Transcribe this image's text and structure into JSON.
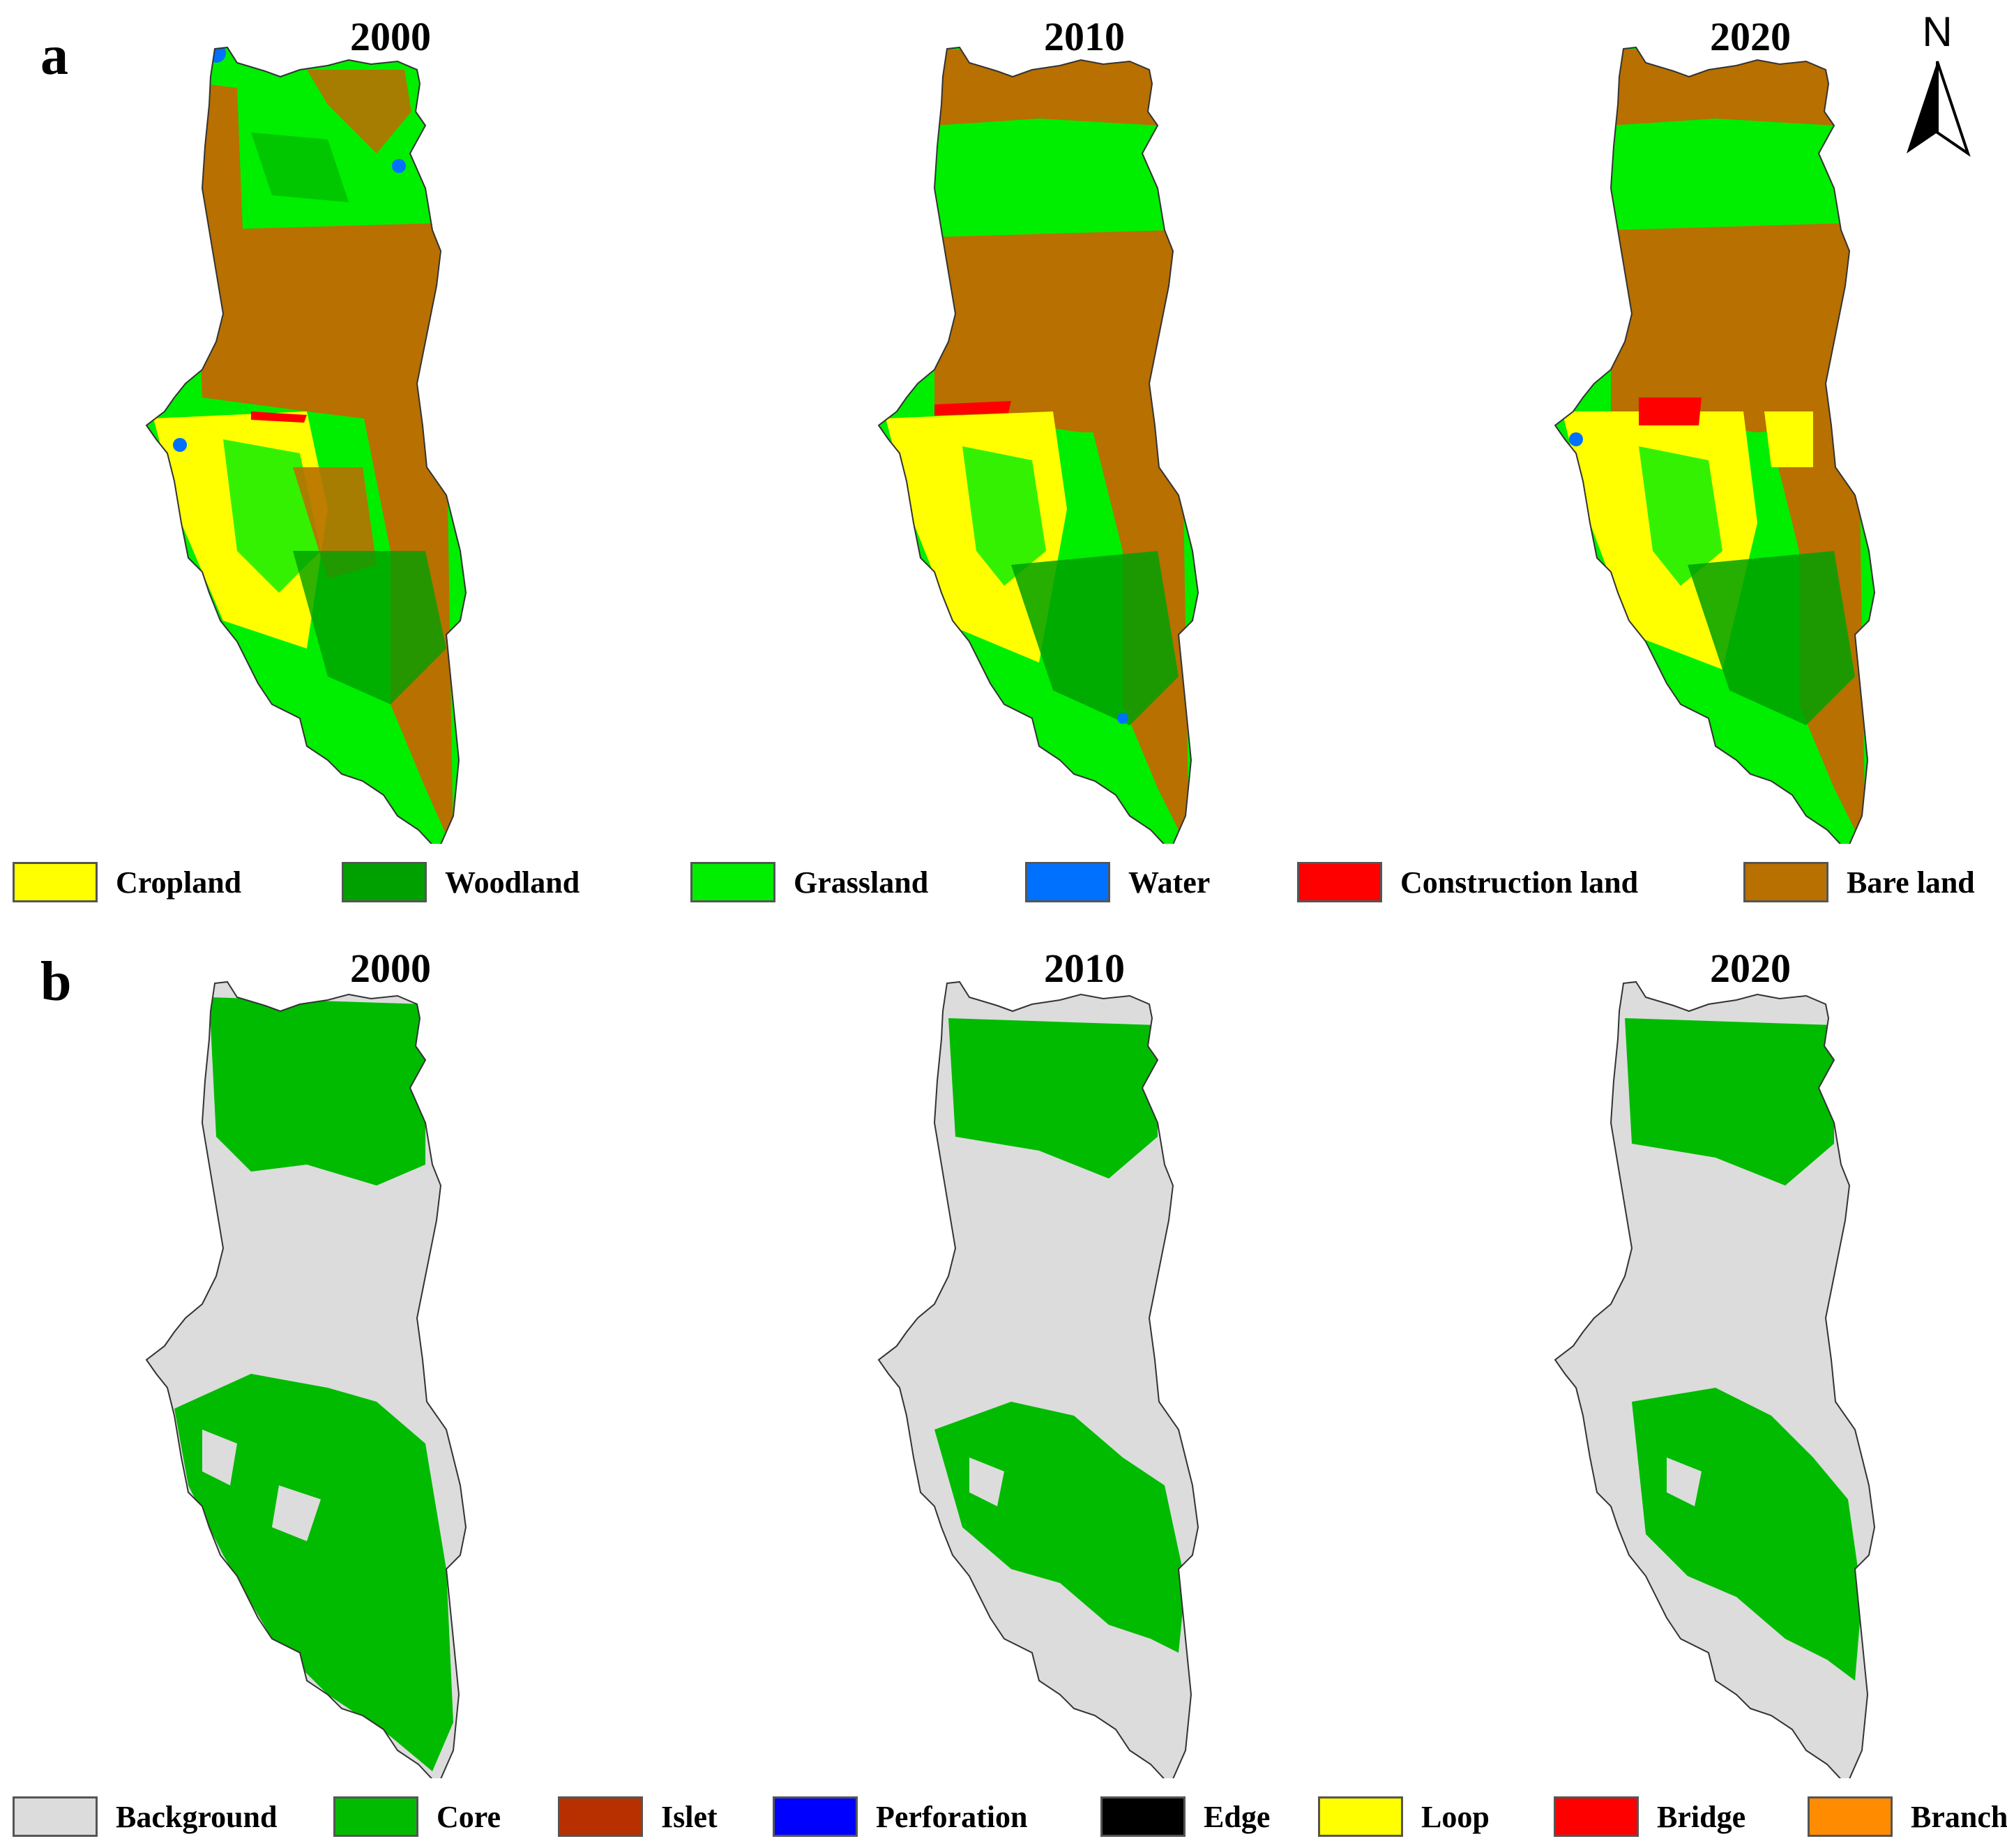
{
  "panel_a": {
    "letter": "a",
    "years": [
      "2000",
      "2010",
      "2020"
    ],
    "legend": [
      {
        "label": "Cropland",
        "color": "#ffff00"
      },
      {
        "label": "Woodland",
        "color": "#00a000"
      },
      {
        "label": "Grassland",
        "color": "#00ee00"
      },
      {
        "label": "Water",
        "color": "#0070ff"
      },
      {
        "label": "Construction land",
        "color": "#ff0000"
      },
      {
        "label": "Bare land",
        "color": "#b87000"
      }
    ]
  },
  "panel_b": {
    "letter": "b",
    "years": [
      "2000",
      "2010",
      "2020"
    ],
    "legend": [
      {
        "label": "Background",
        "color": "#dcdcdc"
      },
      {
        "label": "Core",
        "color": "#00bb00"
      },
      {
        "label": "Islet",
        "color": "#b83000"
      },
      {
        "label": "Perforation",
        "color": "#0000ff"
      },
      {
        "label": "Edge",
        "color": "#000000"
      },
      {
        "label": "Loop",
        "color": "#ffff00"
      },
      {
        "label": "Bridge",
        "color": "#ff0000"
      },
      {
        "label": "Branch",
        "color": "#ff8c00"
      }
    ]
  },
  "north_arrow": {
    "label": "N"
  }
}
